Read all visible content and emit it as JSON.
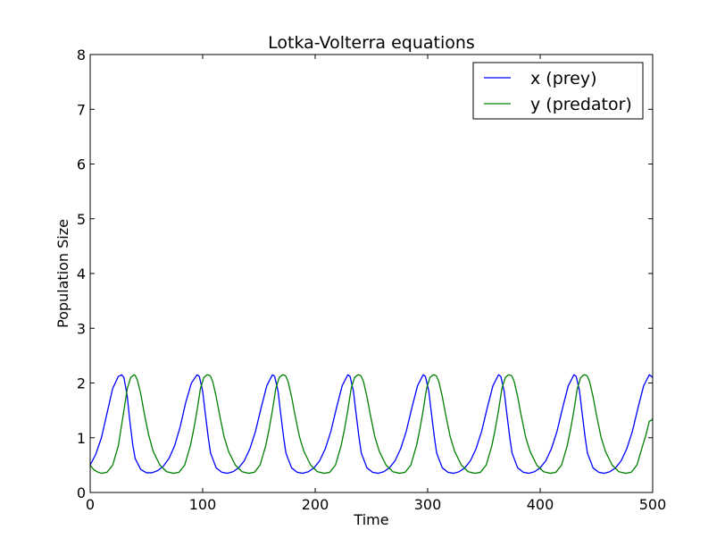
{
  "chart_data": {
    "type": "line",
    "title": "Lotka-Volterra equations",
    "xlabel": "Time",
    "ylabel": "Population Size",
    "xlim": [
      0,
      500
    ],
    "ylim": [
      0,
      8
    ],
    "xticks": [
      0,
      100,
      200,
      300,
      400,
      500
    ],
    "xtick_labels": [
      "0",
      "100",
      "200",
      "300",
      "400",
      "500"
    ],
    "yticks": [
      0,
      1,
      2,
      3,
      4,
      5,
      6,
      7,
      8
    ],
    "ytick_labels": [
      "0",
      "1",
      "2",
      "3",
      "4",
      "5",
      "6",
      "7",
      "8"
    ],
    "grid": false,
    "legend_position": "top-right",
    "series": [
      {
        "name": "x (prey)",
        "color": "#0000ff",
        "x": [
          0,
          5,
          10,
          15,
          20,
          25,
          28,
          30,
          33,
          35,
          38,
          40,
          45,
          50,
          55,
          60,
          65,
          70,
          75,
          80,
          85,
          90,
          95,
          97,
          100,
          102,
          105,
          107,
          112,
          117,
          122,
          127,
          132,
          137,
          142,
          147,
          152,
          157,
          162,
          164,
          167,
          169,
          172,
          174,
          179,
          184,
          189,
          194,
          199,
          204,
          209,
          214,
          219,
          224,
          229,
          231,
          234,
          236,
          239,
          241,
          246,
          251,
          256,
          261,
          266,
          271,
          276,
          281,
          286,
          291,
          296,
          298,
          301,
          303,
          306,
          308,
          313,
          318,
          323,
          328,
          333,
          338,
          343,
          348,
          353,
          358,
          363,
          365,
          368,
          370,
          373,
          375,
          380,
          385,
          390,
          395,
          400,
          405,
          410,
          415,
          420,
          425,
          430,
          432,
          435,
          437,
          440,
          442,
          447,
          452,
          457,
          462,
          467,
          472,
          477,
          482,
          487,
          492,
          497,
          499,
          500
        ],
        "y": [
          0.5,
          0.7,
          1.0,
          1.45,
          1.9,
          2.12,
          2.15,
          2.1,
          1.75,
          1.35,
          0.85,
          0.62,
          0.42,
          0.36,
          0.36,
          0.4,
          0.48,
          0.62,
          0.85,
          1.2,
          1.65,
          2.0,
          2.15,
          2.12,
          1.85,
          1.5,
          1.0,
          0.72,
          0.45,
          0.37,
          0.35,
          0.38,
          0.45,
          0.58,
          0.8,
          1.12,
          1.55,
          1.95,
          2.15,
          2.12,
          1.85,
          1.5,
          1.0,
          0.72,
          0.45,
          0.37,
          0.35,
          0.38,
          0.45,
          0.58,
          0.8,
          1.12,
          1.55,
          1.95,
          2.15,
          2.12,
          1.85,
          1.5,
          1.0,
          0.72,
          0.45,
          0.37,
          0.35,
          0.38,
          0.45,
          0.58,
          0.8,
          1.12,
          1.55,
          1.95,
          2.15,
          2.12,
          1.85,
          1.5,
          1.0,
          0.72,
          0.45,
          0.37,
          0.35,
          0.38,
          0.45,
          0.58,
          0.8,
          1.12,
          1.55,
          1.95,
          2.15,
          2.12,
          1.85,
          1.5,
          1.0,
          0.72,
          0.45,
          0.37,
          0.35,
          0.38,
          0.45,
          0.58,
          0.8,
          1.12,
          1.55,
          1.95,
          2.15,
          2.12,
          1.85,
          1.5,
          1.0,
          0.72,
          0.45,
          0.37,
          0.35,
          0.38,
          0.45,
          0.58,
          0.8,
          1.12,
          1.55,
          1.95,
          2.15,
          2.12,
          2.1
        ]
      },
      {
        "name": "y (predator)",
        "color": "#008000",
        "x": [
          0,
          3,
          6,
          10,
          15,
          20,
          25,
          30,
          33,
          36,
          39,
          40,
          42,
          45,
          48,
          52,
          56,
          62,
          68,
          74,
          79,
          84,
          89,
          92,
          95,
          98,
          101,
          104,
          106,
          107,
          109,
          112,
          115,
          119,
          123,
          129,
          135,
          141,
          146,
          151,
          156,
          159,
          162,
          165,
          168,
          171,
          173,
          174,
          176,
          179,
          182,
          186,
          190,
          196,
          202,
          208,
          213,
          218,
          223,
          226,
          229,
          232,
          235,
          238,
          240,
          241,
          243,
          246,
          249,
          253,
          257,
          263,
          269,
          275,
          280,
          285,
          290,
          293,
          296,
          299,
          302,
          305,
          307,
          308,
          310,
          313,
          316,
          320,
          324,
          330,
          336,
          342,
          347,
          352,
          357,
          360,
          363,
          366,
          369,
          372,
          374,
          375,
          377,
          380,
          383,
          387,
          391,
          397,
          403,
          409,
          414,
          419,
          424,
          427,
          430,
          433,
          436,
          439,
          441,
          442,
          444,
          447,
          450,
          454,
          458,
          464,
          470,
          476,
          481,
          486,
          491,
          494,
          497,
          499,
          500
        ],
        "y": [
          0.5,
          0.42,
          0.38,
          0.35,
          0.37,
          0.5,
          0.85,
          1.5,
          1.9,
          2.1,
          2.15,
          2.14,
          2.05,
          1.8,
          1.45,
          1.05,
          0.75,
          0.5,
          0.38,
          0.35,
          0.37,
          0.5,
          0.85,
          1.15,
          1.5,
          1.9,
          2.1,
          2.15,
          2.14,
          2.12,
          2.02,
          1.75,
          1.42,
          1.02,
          0.75,
          0.5,
          0.38,
          0.35,
          0.37,
          0.5,
          0.85,
          1.15,
          1.5,
          1.9,
          2.1,
          2.15,
          2.14,
          2.12,
          2.02,
          1.75,
          1.42,
          1.02,
          0.75,
          0.5,
          0.38,
          0.35,
          0.37,
          0.5,
          0.85,
          1.15,
          1.5,
          1.9,
          2.1,
          2.15,
          2.14,
          2.12,
          2.02,
          1.75,
          1.42,
          1.02,
          0.75,
          0.5,
          0.38,
          0.35,
          0.37,
          0.5,
          0.85,
          1.15,
          1.5,
          1.9,
          2.1,
          2.15,
          2.14,
          2.12,
          2.02,
          1.75,
          1.42,
          1.02,
          0.75,
          0.5,
          0.38,
          0.35,
          0.37,
          0.5,
          0.85,
          1.15,
          1.5,
          1.9,
          2.1,
          2.15,
          2.14,
          2.12,
          2.02,
          1.75,
          1.42,
          1.02,
          0.75,
          0.5,
          0.38,
          0.35,
          0.37,
          0.5,
          0.85,
          1.15,
          1.5,
          1.9,
          2.1,
          2.15,
          2.14,
          2.12,
          2.02,
          1.75,
          1.42,
          1.02,
          0.75,
          0.5,
          0.38,
          0.35,
          0.37,
          0.5,
          0.85,
          1.05,
          1.3,
          1.32,
          1.35
        ]
      }
    ]
  }
}
